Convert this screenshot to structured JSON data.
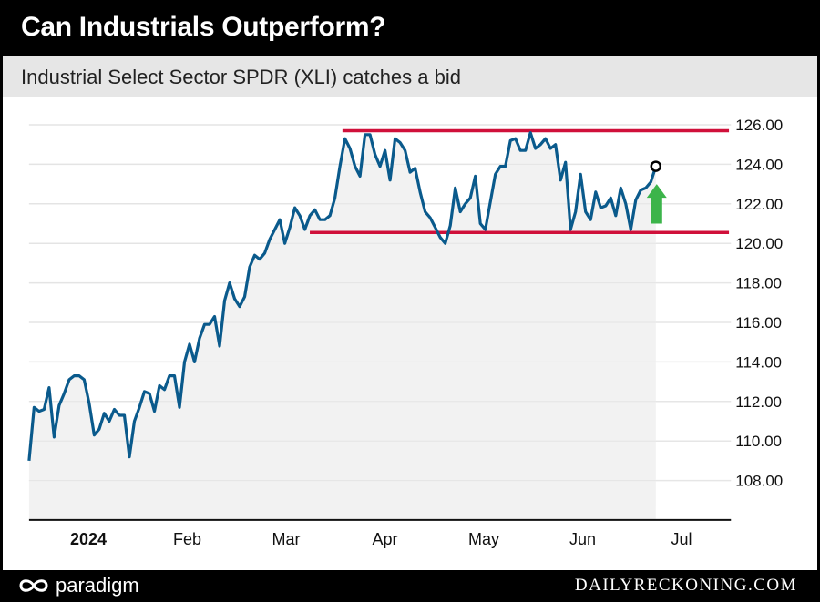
{
  "chart_data": {
    "type": "line",
    "title": "Can Industrials Outperform?",
    "subtitle": "Industrial Select Sector SPDR (XLI) catches a bid",
    "xlabel": "",
    "ylabel": "",
    "x_unit": "months from Jan 2024 (0 = 2024/Jan label)",
    "x_start": -0.6,
    "x_end": 5.74,
    "xlim": [
      -0.6,
      6.5
    ],
    "ylim": [
      106.05,
      127.3
    ],
    "x_tick_labels": [
      "2024",
      "Feb",
      "Mar",
      "Apr",
      "May",
      "Jun",
      "Jul"
    ],
    "y_ticks": [
      108,
      110,
      112,
      114,
      116,
      118,
      120,
      122,
      124,
      126
    ],
    "y_tick_labels": [
      "108.00",
      "110.00",
      "112.00",
      "114.00",
      "116.00",
      "118.00",
      "120.00",
      "122.00",
      "124.00",
      "126.00"
    ],
    "grid": true,
    "series": [
      {
        "name": "XLI",
        "color": "#0a5a8c",
        "values": [
          109.0,
          111.7,
          111.5,
          111.6,
          112.7,
          110.2,
          111.8,
          112.4,
          113.1,
          113.3,
          113.3,
          113.1,
          111.9,
          110.3,
          110.6,
          111.4,
          111.0,
          111.6,
          111.3,
          111.3,
          109.2,
          111.0,
          111.7,
          112.5,
          112.4,
          111.5,
          112.8,
          112.6,
          113.3,
          113.3,
          111.7,
          114.0,
          114.9,
          114.0,
          115.2,
          115.9,
          115.9,
          116.3,
          114.8,
          117.1,
          118.0,
          117.2,
          116.8,
          117.3,
          118.8,
          119.4,
          119.2,
          119.5,
          120.2,
          120.7,
          121.2,
          120.0,
          120.8,
          121.8,
          121.4,
          120.7,
          121.4,
          121.7,
          121.2,
          121.2,
          121.4,
          122.3,
          123.9,
          125.3,
          124.8,
          123.9,
          123.4,
          125.5,
          125.5,
          124.5,
          123.9,
          124.7,
          123.2,
          125.3,
          125.1,
          124.7,
          123.6,
          123.8,
          122.6,
          121.6,
          121.3,
          120.8,
          120.3,
          120.0,
          120.9,
          122.8,
          121.6,
          122.0,
          122.3,
          123.4,
          121.0,
          120.7,
          122.1,
          123.5,
          123.9,
          123.9,
          125.2,
          125.3,
          124.7,
          124.7,
          125.6,
          124.8,
          125.0,
          125.3,
          124.8,
          125.0,
          123.2,
          124.1,
          120.7,
          121.6,
          123.5,
          121.6,
          121.2,
          122.6,
          121.8,
          121.9,
          122.3,
          121.4,
          122.8,
          122.0,
          120.7,
          122.2,
          122.7,
          122.8,
          123.1,
          123.9
        ]
      }
    ],
    "annotations": {
      "resistance": {
        "value": 125.7,
        "x_from": 2.57,
        "x_to": 6.48,
        "color": "#d0103a"
      },
      "support": {
        "value": 120.55,
        "x_from": 2.24,
        "x_to": 6.48,
        "color": "#d0103a"
      },
      "up_arrow_color": "#3cb44a",
      "last_point_marker": true
    }
  },
  "footer": {
    "brand": "paradigm",
    "site": "DAILYRECKONING.COM"
  }
}
